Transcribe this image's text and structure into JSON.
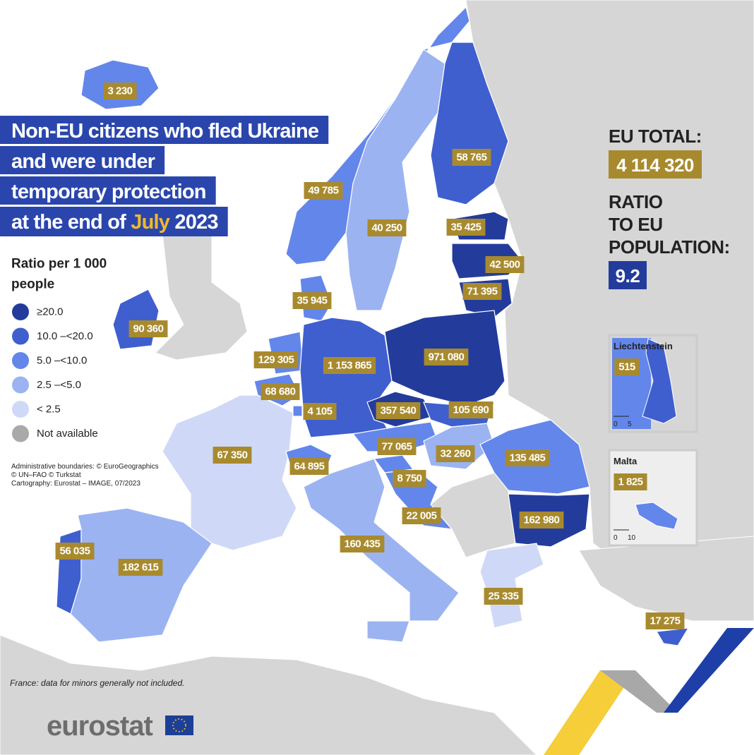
{
  "title": {
    "lines": [
      "Non-EU citizens who fled Ukraine",
      "and were under",
      "temporary protection"
    ],
    "last_line": {
      "before": "at the end of",
      "month": "July",
      "year": "2023"
    }
  },
  "legend": {
    "title_lines": [
      "Ratio per 1 000",
      "people"
    ],
    "items": [
      {
        "label": "≥20.0",
        "color": "#233c9b"
      },
      {
        "label": "10.0 –<20.0",
        "color": "#3f5fcf"
      },
      {
        "label": "5.0 –<10.0",
        "color": "#6386ea"
      },
      {
        "label": "2.5 –<5.0",
        "color": "#9bb3f1"
      },
      {
        "label": "< 2.5",
        "color": "#cfd9f7"
      },
      {
        "label": "Not available",
        "color": "#a9a9a9"
      }
    ]
  },
  "credits": [
    "Administrative boundaries: © EuroGeographics",
    "© UN–FAO © Turkstat",
    "Cartography: Eurostat – IMAGE, 07/2023"
  ],
  "eu_total": {
    "label": "EU TOTAL:",
    "value": "4 114 320"
  },
  "ratio": {
    "label_lines": [
      "RATIO",
      "TO EU",
      "POPULATION:"
    ],
    "value": "9.2"
  },
  "labels": [
    {
      "text": "3 230",
      "color": "#6386ea"
    },
    {
      "text": "49 785",
      "color": "#6386ea"
    },
    {
      "text": "58 765",
      "color": "#3f5fcf"
    },
    {
      "text": "40 250",
      "color": "#9bb3f1"
    },
    {
      "text": "35 425",
      "color": "#233c9b"
    },
    {
      "text": "42 500",
      "color": "#233c9b"
    },
    {
      "text": "71 395",
      "color": "#233c9b"
    },
    {
      "text": "35 945",
      "color": "#6386ea"
    },
    {
      "text": "90 360",
      "color": "#3f5fcf"
    },
    {
      "text": "129 305",
      "color": "#6386ea"
    },
    {
      "text": "1 153 865",
      "color": "#3f5fcf"
    },
    {
      "text": "971 080",
      "color": "#233c9b"
    },
    {
      "text": "68 680",
      "color": "#6386ea"
    },
    {
      "text": "4 105",
      "color": "#6386ea"
    },
    {
      "text": "357 540",
      "color": "#233c9b"
    },
    {
      "text": "105 690",
      "color": "#3f5fcf"
    },
    {
      "text": "77 065",
      "color": "#6386ea"
    },
    {
      "text": "32 260",
      "color": "#9bb3f1"
    },
    {
      "text": "135 485",
      "color": "#6386ea"
    },
    {
      "text": "67 350",
      "color": "#cfd9f7"
    },
    {
      "text": "64 895",
      "color": "#6386ea"
    },
    {
      "text": "8 750",
      "color": "#6386ea"
    },
    {
      "text": "22 005",
      "color": "#6386ea"
    },
    {
      "text": "162 980",
      "color": "#233c9b"
    },
    {
      "text": "56 035",
      "color": "#3f5fcf"
    },
    {
      "text": "160 435",
      "color": "#9bb3f1"
    },
    {
      "text": "182 615",
      "color": "#9bb3f1"
    },
    {
      "text": "25 335",
      "color": "#cfd9f7"
    },
    {
      "text": "17 275",
      "color": "#3f5fcf"
    }
  ],
  "insets": [
    {
      "name": "Liechtenstein",
      "value": "515",
      "color": "#3f5fcf",
      "scale": [
        "0",
        "5"
      ]
    },
    {
      "name": "Malta",
      "value": "1 825",
      "color": "#6386ea",
      "scale": [
        "0",
        "10"
      ]
    }
  ],
  "footnote": "France: data for minors generally not included.",
  "logo": "eurostat"
}
